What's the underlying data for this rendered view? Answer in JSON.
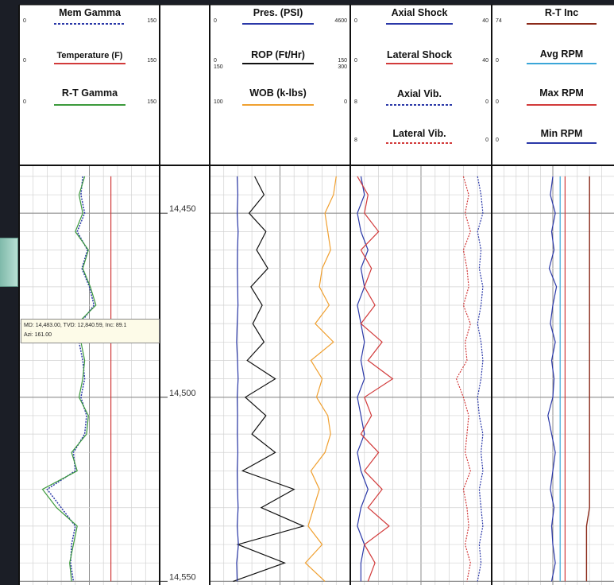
{
  "colors": {
    "background": "#1b1e26",
    "grid_minor": "#d2d2d2",
    "grid_major": "#8c8c8c",
    "blue": "#2a38a8",
    "green": "#3c9a3c",
    "red": "#d23a3a",
    "orange": "#f0a030",
    "black": "#111111",
    "cyan": "#3aa6d8",
    "brown": "#8b2a1a",
    "pink": "#e0607a"
  },
  "header": {
    "depth_unit": "ft",
    "tracks": [
      {
        "curves": [
          {
            "name": "Mem Gamma",
            "min": "0",
            "max": "150",
            "color": "#2a38a8",
            "dashed": true
          },
          {
            "name": "Temperature (F)",
            "min": "0",
            "max": "150",
            "color": "#d23a3a",
            "dashed": false
          },
          {
            "name": "R-T Gamma",
            "min": "0",
            "max": "150",
            "color": "#3c9a3c",
            "dashed": false
          }
        ]
      },
      {
        "curves": [
          {
            "name": "Pres. (PSI)",
            "min": "0",
            "max": "4600",
            "color": "#2a38a8",
            "dashed": false
          },
          {
            "name": "ROP (Ft/Hr)",
            "min": "0",
            "max": "150",
            "min2": "150",
            "max2": "300",
            "color": "#111111",
            "dashed": false
          },
          {
            "name": "WOB (k-lbs)",
            "min": "100",
            "max": "0",
            "color": "#f0a030",
            "dashed": false
          }
        ]
      },
      {
        "curves": [
          {
            "name": "Axial Shock",
            "min": "0",
            "max": "40",
            "color": "#2a38a8",
            "dashed": false
          },
          {
            "name": "Lateral Shock",
            "min": "0",
            "max": "40",
            "color": "#d23a3a",
            "dashed": false
          },
          {
            "name": "Axial Vib.",
            "min": "8",
            "max": "0",
            "color": "#2a38a8",
            "dashed": true
          },
          {
            "name": "Lateral Vib.",
            "min": "8",
            "max": "0",
            "color": "#d23a3a",
            "dashed": true
          }
        ]
      },
      {
        "curves": [
          {
            "name": "R-T Inc",
            "min": "74",
            "max": "",
            "color": "#8b2a1a",
            "dashed": false
          },
          {
            "name": "Avg RPM",
            "min": "0",
            "max": "",
            "color": "#3aa6d8",
            "dashed": false
          },
          {
            "name": "Max RPM",
            "min": "0",
            "max": "",
            "color": "#d23a3a",
            "dashed": false
          },
          {
            "name": "Min RPM",
            "min": "0",
            "max": "",
            "color": "#2a38a8",
            "dashed": false
          }
        ]
      }
    ]
  },
  "tooltip": {
    "line1": "MD: 14,483.00, TVD: 12,840.59, Inc: 89.1",
    "line2": "Azi: 161.00"
  },
  "chart_data": {
    "type": "line",
    "depth_axis": {
      "unit": "ft",
      "range": [
        14437,
        14551
      ],
      "ticks": [
        14450,
        14500,
        14550
      ],
      "tick_labels": [
        "14,450",
        "14,500",
        "14,550"
      ]
    },
    "depth": [
      14440,
      14445,
      14450,
      14455,
      14460,
      14465,
      14470,
      14475,
      14480,
      14485,
      14490,
      14495,
      14500,
      14505,
      14510,
      14515,
      14520,
      14525,
      14530,
      14535,
      14540,
      14545,
      14550
    ],
    "series": [
      {
        "name": "Mem Gamma",
        "track": 1,
        "color": "#2a38a8",
        "dashed": true,
        "width": 1.5,
        "values": [
          68,
          66,
          70,
          62,
          73,
          67,
          75,
          80,
          65,
          64,
          68,
          70,
          66,
          72,
          70,
          58,
          60,
          30,
          45,
          60,
          56,
          55,
          58
        ]
      },
      {
        "name": "R-T Gamma",
        "track": 1,
        "color": "#3c9a3c",
        "dashed": false,
        "width": 1.2,
        "values": [
          70,
          64,
          68,
          60,
          74,
          68,
          76,
          82,
          62,
          66,
          70,
          68,
          64,
          74,
          72,
          56,
          62,
          25,
          40,
          62,
          58,
          54,
          56
        ]
      },
      {
        "name": "Temperature (F)",
        "track": 1,
        "color": "#d23a3a",
        "dashed": false,
        "width": 1.2,
        "values": [
          98,
          98,
          98,
          98,
          98,
          98,
          98,
          98,
          98,
          98,
          98,
          98,
          98,
          98,
          98,
          98,
          98,
          98,
          98,
          98,
          98,
          98,
          98
        ]
      },
      {
        "name": "ROP (Ft/Hr)",
        "track": 2,
        "color": "#111111",
        "dashed": false,
        "width": 1.2,
        "values": [
          48,
          58,
          42,
          60,
          50,
          62,
          44,
          56,
          46,
          58,
          40,
          70,
          38,
          60,
          45,
          70,
          35,
          90,
          55,
          100,
          30,
          80,
          25
        ]
      },
      {
        "name": "WOB (k-lbs)",
        "track": 2,
        "color": "#f0a030",
        "dashed": false,
        "width": 1.2,
        "values": [
          10,
          12,
          18,
          16,
          14,
          20,
          22,
          15,
          25,
          12,
          28,
          20,
          24,
          16,
          14,
          18,
          28,
          22,
          26,
          30,
          20,
          32,
          18
        ]
      },
      {
        "name": "Pres. (PSI)",
        "track": 2,
        "color": "#2a38a8",
        "dashed": false,
        "width": 1.2,
        "values": [
          900,
          920,
          900,
          930,
          910,
          905,
          915,
          925,
          900,
          880,
          910,
          930,
          900,
          910,
          905,
          920,
          900,
          910,
          930,
          900,
          940,
          880,
          900
        ]
      },
      {
        "name": "Axial Shock",
        "track": 3,
        "color": "#2a38a8",
        "dashed": false,
        "width": 1.2,
        "values": [
          3,
          4,
          2,
          3,
          5,
          3,
          4,
          2,
          3,
          4,
          3,
          4,
          2,
          3,
          4,
          2,
          3,
          5,
          3,
          2,
          4,
          3,
          3
        ]
      },
      {
        "name": "Lateral Shock",
        "track": 3,
        "color": "#d23a3a",
        "dashed": false,
        "width": 1.2,
        "values": [
          2,
          5,
          4,
          8,
          3,
          6,
          4,
          7,
          3,
          9,
          5,
          12,
          4,
          6,
          3,
          8,
          4,
          9,
          5,
          11,
          4,
          7,
          5
        ]
      },
      {
        "name": "Axial Vib.",
        "track": 3,
        "color": "#2a38a8",
        "dashed": true,
        "width": 1.2,
        "values": [
          0.8,
          0.6,
          0.5,
          0.8,
          0.6,
          0.7,
          0.5,
          0.6,
          0.8,
          0.6,
          0.5,
          0.6,
          0.8,
          0.7,
          0.5,
          0.6,
          0.5,
          0.7,
          0.6,
          0.5,
          0.7,
          0.6,
          0.8
        ]
      },
      {
        "name": "Lateral Vib.",
        "track": 3,
        "color": "#d23a3a",
        "dashed": true,
        "width": 1.2,
        "values": [
          1.6,
          1.3,
          1.5,
          1.2,
          1.6,
          1.4,
          1.3,
          1.6,
          1.2,
          1.5,
          1.4,
          2.0,
          1.6,
          1.3,
          1.4,
          1.5,
          1.2,
          1.6,
          1.4,
          1.3,
          1.5,
          1.2,
          1.4
        ]
      },
      {
        "name": "Min RPM",
        "track": 4,
        "color": "#2a38a8",
        "dashed": false,
        "width": 1.2,
        "values": [
          50,
          48,
          52,
          49,
          51,
          47,
          53,
          50,
          48,
          52,
          49,
          51,
          50,
          46,
          49,
          52,
          50,
          48,
          51,
          49,
          50,
          52,
          49
        ]
      },
      {
        "name": "Avg RPM",
        "track": 4,
        "color": "#3aa6d8",
        "dashed": false,
        "width": 1.2,
        "values": [
          56,
          56,
          56,
          56,
          56,
          56,
          56,
          56,
          56,
          56,
          56,
          56,
          56,
          56,
          56,
          56,
          56,
          56,
          56,
          56,
          56,
          56,
          56
        ]
      },
      {
        "name": "Max RPM",
        "track": 4,
        "color": "#d23a3a",
        "dashed": false,
        "width": 1.2,
        "values": [
          60,
          60,
          60,
          60,
          60,
          60,
          60,
          60,
          60,
          60,
          60,
          60,
          60,
          60,
          60,
          60,
          60,
          60,
          60,
          60,
          60,
          60,
          60
        ]
      },
      {
        "name": "R-T Inc",
        "track": 4,
        "color": "#8b2a1a",
        "dashed": false,
        "width": 1.4,
        "values": [
          90,
          90,
          90,
          90,
          90,
          90,
          90,
          90,
          90,
          90,
          90,
          90,
          90,
          90,
          90,
          90,
          90,
          90,
          90,
          89.5,
          89.5,
          89.5,
          89.5
        ]
      }
    ]
  }
}
